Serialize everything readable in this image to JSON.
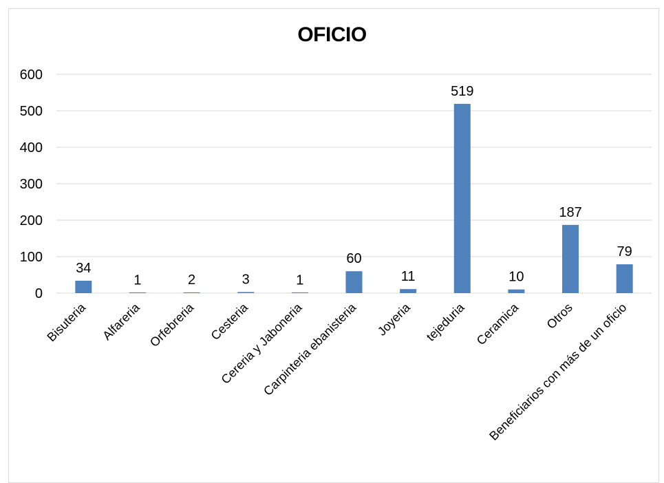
{
  "chart_data": {
    "type": "bar",
    "title": "OFICIO",
    "xlabel": "",
    "ylabel": "",
    "categories": [
      "Bisuteria",
      "Alfareria",
      "Orfebreria",
      "Cesteria",
      "Cereria y Jaboneria",
      "Carpinteria ebanisteria",
      "Joyeria",
      "tejeduria",
      "Ceramica",
      "Otros",
      "Beneficiarios con más de un oficio"
    ],
    "values": [
      34,
      1,
      2,
      3,
      1,
      60,
      11,
      519,
      10,
      187,
      79
    ],
    "ylim": [
      0,
      600
    ],
    "yticks": [
      0,
      100,
      200,
      300,
      400,
      500,
      600
    ],
    "data_labels": true,
    "grid": true,
    "legend": "none",
    "colors": {
      "bar": "#4f81bd",
      "grid": "#d9d9d9",
      "text": "#000000"
    }
  }
}
